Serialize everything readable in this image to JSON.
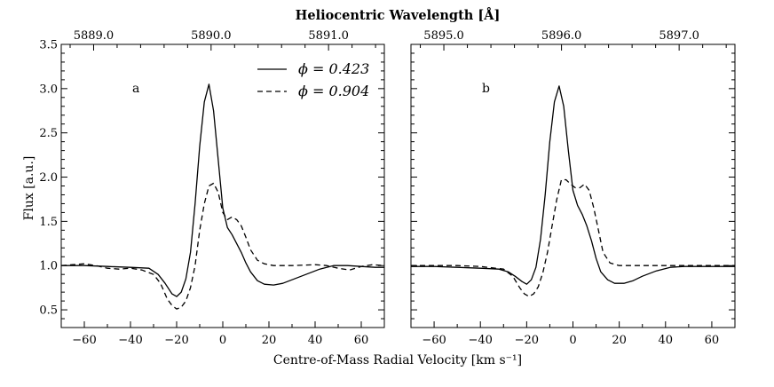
{
  "figure": {
    "top_title": "Heliocentric Wavelength [Å]",
    "xlabel": "Centre-of-Mass Radial Velocity [km s⁻¹]",
    "ylabel": "Flux [a.u.]"
  },
  "legend": [
    {
      "label": "ϕ = 0.423",
      "style": "solid"
    },
    {
      "label": "ϕ = 0.904",
      "style": "dashed"
    }
  ],
  "chart_data": [
    {
      "type": "line",
      "panel_label": "a",
      "xlim": [
        -70,
        70
      ],
      "ylim": [
        0.3,
        3.5
      ],
      "xticks": [
        -60,
        -40,
        -20,
        0,
        20,
        40,
        60
      ],
      "xtick_labels": [
        "−60",
        "−40",
        "−20",
        "0",
        "20",
        "40",
        "60"
      ],
      "yticks": [
        0.5,
        1.0,
        1.5,
        2.0,
        2.5,
        3.0,
        3.5
      ],
      "ytick_labels": [
        "0.5",
        "1.0",
        "1.5",
        "2.0",
        "2.5",
        "3.0",
        "3.5"
      ],
      "top_ticks": [
        {
          "value": -55.97,
          "label": "5889.0"
        },
        {
          "value": -5.07,
          "label": "5890.0"
        },
        {
          "value": 45.83,
          "label": "5891.0"
        }
      ],
      "series": [
        {
          "name": "ϕ = 0.423",
          "style": "solid",
          "x": [
            -70,
            -60,
            -50,
            -40,
            -32,
            -28,
            -25,
            -22,
            -20,
            -18,
            -16,
            -14,
            -12,
            -10,
            -8,
            -6,
            -4,
            -2,
            0,
            2,
            4,
            6,
            8,
            10,
            12,
            15,
            18,
            22,
            26,
            30,
            36,
            42,
            48,
            54,
            60,
            66,
            70
          ],
          "y": [
            1.0,
            1.0,
            0.99,
            0.98,
            0.97,
            0.9,
            0.8,
            0.68,
            0.65,
            0.7,
            0.85,
            1.15,
            1.7,
            2.35,
            2.85,
            3.05,
            2.75,
            2.2,
            1.65,
            1.43,
            1.35,
            1.25,
            1.15,
            1.03,
            0.93,
            0.83,
            0.79,
            0.78,
            0.8,
            0.84,
            0.9,
            0.96,
            1.0,
            1.0,
            0.99,
            0.98,
            0.98
          ]
        },
        {
          "name": "ϕ = 0.904",
          "style": "dashed",
          "x": [
            -70,
            -65,
            -60,
            -55,
            -50,
            -45,
            -40,
            -35,
            -30,
            -27,
            -24,
            -22,
            -20,
            -18,
            -16,
            -14,
            -12,
            -10,
            -8,
            -6,
            -4,
            -2,
            0,
            2,
            4,
            6,
            8,
            10,
            12,
            15,
            18,
            22,
            30,
            40,
            45,
            50,
            55,
            60,
            65,
            70
          ],
          "y": [
            1.0,
            1.01,
            1.02,
            1.0,
            0.97,
            0.96,
            0.97,
            0.95,
            0.9,
            0.8,
            0.62,
            0.55,
            0.51,
            0.53,
            0.6,
            0.75,
            1.0,
            1.4,
            1.7,
            1.9,
            1.93,
            1.83,
            1.6,
            1.52,
            1.55,
            1.52,
            1.45,
            1.32,
            1.18,
            1.06,
            1.02,
            1.0,
            1.0,
            1.01,
            1.0,
            0.97,
            0.95,
            0.99,
            1.01,
            1.0
          ]
        }
      ]
    },
    {
      "type": "line",
      "panel_label": "b",
      "xlim": [
        -70,
        70
      ],
      "ylim": [
        0.3,
        3.5
      ],
      "xticks": [
        -60,
        -40,
        -20,
        0,
        20,
        40,
        60
      ],
      "xtick_labels": [
        "−60",
        "−40",
        "−20",
        "0",
        "20",
        "40",
        "60"
      ],
      "yticks": [
        0.5,
        1.0,
        1.5,
        2.0,
        2.5,
        3.0,
        3.5
      ],
      "ytick_labels": [
        "",
        "",
        "",
        "",
        "",
        "",
        ""
      ],
      "top_ticks": [
        {
          "value": -55.79,
          "label": "5895.0"
        },
        {
          "value": -4.95,
          "label": "5896.0"
        },
        {
          "value": 45.89,
          "label": "5897.0"
        }
      ],
      "series": [
        {
          "name": "ϕ = 0.423",
          "style": "solid",
          "x": [
            -70,
            -60,
            -50,
            -40,
            -32,
            -28,
            -25,
            -22,
            -20,
            -18,
            -16,
            -14,
            -12,
            -10,
            -8,
            -6,
            -4,
            -2,
            0,
            2,
            4,
            6,
            8,
            10,
            12,
            15,
            18,
            22,
            26,
            30,
            36,
            42,
            48,
            54,
            60,
            66,
            70
          ],
          "y": [
            0.99,
            0.99,
            0.98,
            0.97,
            0.96,
            0.93,
            0.88,
            0.82,
            0.79,
            0.84,
            0.98,
            1.3,
            1.8,
            2.4,
            2.85,
            3.03,
            2.8,
            2.3,
            1.85,
            1.68,
            1.58,
            1.45,
            1.28,
            1.08,
            0.93,
            0.84,
            0.8,
            0.8,
            0.83,
            0.88,
            0.94,
            0.98,
            0.99,
            0.99,
            0.99,
            0.99,
            0.99
          ]
        },
        {
          "name": "ϕ = 0.904",
          "style": "dashed",
          "x": [
            -70,
            -60,
            -50,
            -40,
            -30,
            -26,
            -23,
            -21,
            -19,
            -17,
            -15,
            -13,
            -11,
            -9,
            -7,
            -5,
            -3,
            -1,
            1,
            3,
            5,
            7,
            9,
            11,
            13,
            16,
            20,
            30,
            40,
            50,
            60,
            70
          ],
          "y": [
            1.0,
            1.0,
            1.0,
            0.99,
            0.96,
            0.88,
            0.75,
            0.68,
            0.65,
            0.68,
            0.76,
            0.92,
            1.15,
            1.45,
            1.75,
            1.97,
            1.97,
            1.92,
            1.88,
            1.88,
            1.92,
            1.85,
            1.65,
            1.4,
            1.15,
            1.03,
            1.0,
            1.0,
            1.0,
            1.0,
            1.0,
            1.0
          ]
        }
      ]
    }
  ]
}
